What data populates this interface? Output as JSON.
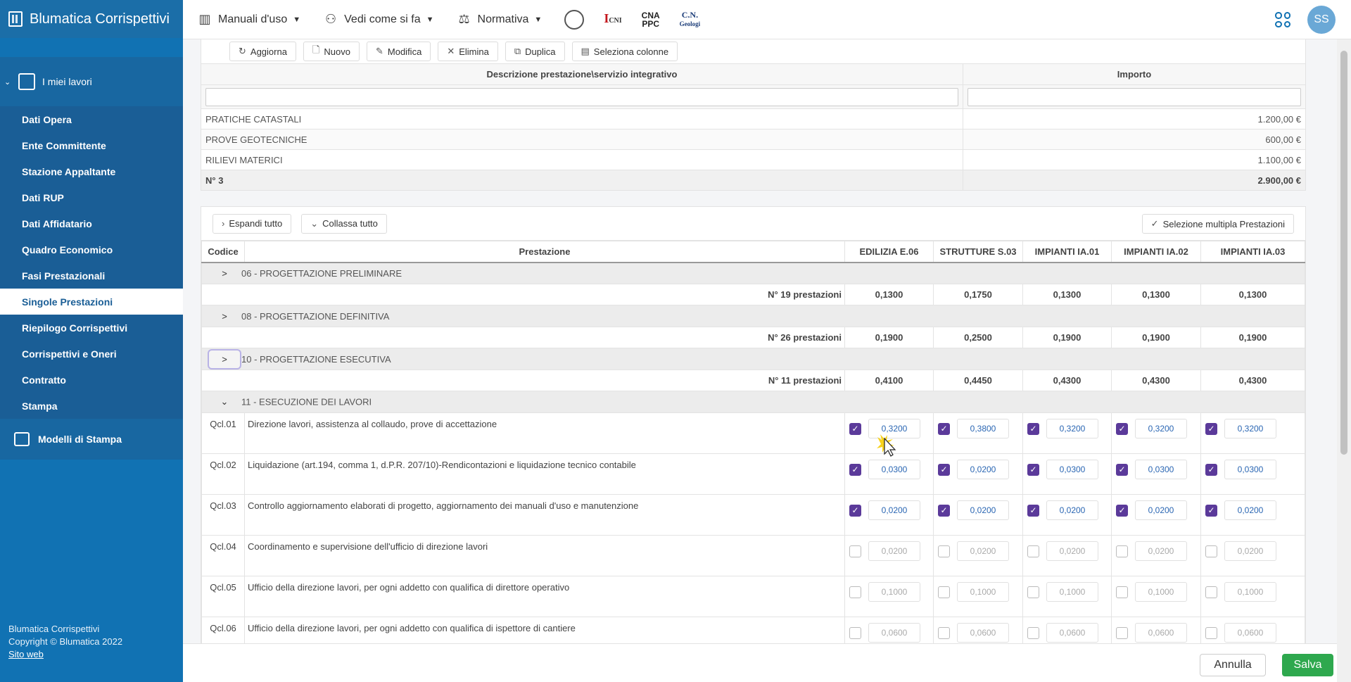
{
  "app": {
    "title": "Blumatica Corrispettivi"
  },
  "sidebar": {
    "section": "I miei lavori",
    "items": [
      {
        "label": "Dati Opera"
      },
      {
        "label": "Ente Committente"
      },
      {
        "label": "Stazione Appaltante"
      },
      {
        "label": "Dati RUP"
      },
      {
        "label": "Dati Affidatario"
      },
      {
        "label": "Quadro Economico"
      },
      {
        "label": "Fasi Prestazionali"
      },
      {
        "label": "Singole Prestazioni",
        "active": true
      },
      {
        "label": "Riepilogo Corrispettivi"
      },
      {
        "label": "Corrispettivi e Oneri"
      },
      {
        "label": "Contratto"
      },
      {
        "label": "Stampa"
      }
    ],
    "section2": "Modelli di Stampa",
    "footer": {
      "line1": "Blumatica Corrispettivi",
      "line2": "Copyright © Blumatica 2022",
      "link": "Sito web"
    }
  },
  "topbar": {
    "menus": [
      {
        "label": "Manuali d'uso",
        "icon": "books-icon"
      },
      {
        "label": "Vedi come si fa",
        "icon": "people-icon"
      },
      {
        "label": "Normativa",
        "icon": "scales-icon"
      }
    ],
    "logos": {
      "cni": "I",
      "cni_small": "CNI",
      "cna_top": "CNA",
      "cna_bottom": "PPC",
      "cng_top": "C.N.",
      "cng_bottom": "Geologi"
    },
    "avatar": "SS"
  },
  "toolbar": {
    "aggiorna": "Aggiorna",
    "nuovo": "Nuovo",
    "modifica": "Modifica",
    "elimina": "Elimina",
    "duplica": "Duplica",
    "seleziona_colonne": "Seleziona colonne"
  },
  "servizi": {
    "headers": {
      "descrizione": "Descrizione prestazione\\servizio integrativo",
      "importo": "Importo"
    },
    "rows": [
      {
        "descrizione": "PRATICHE CATASTALI",
        "importo": "1.200,00 €"
      },
      {
        "descrizione": "PROVE GEOTECNICHE",
        "importo": "600,00 €"
      },
      {
        "descrizione": "RILIEVI MATERICI",
        "importo": "1.100,00 €"
      }
    ],
    "footer": {
      "count": "N° 3",
      "total": "2.900,00 €"
    }
  },
  "prestazioni": {
    "buttons": {
      "espandi": "Espandi tutto",
      "collassa": "Collassa tutto",
      "selezione": "Selezione multipla Prestazioni"
    },
    "headers": {
      "codice": "Codice",
      "prestazione": "Prestazione",
      "cols": [
        "EDILIZIA E.06",
        "STRUTTURE S.03",
        "IMPIANTI IA.01",
        "IMPIANTI IA.02",
        "IMPIANTI IA.03"
      ]
    },
    "groups": [
      {
        "label": "06 - PROGETTAZIONE PRELIMINARE",
        "toggle": ">",
        "count": "N° 19 prestazioni",
        "values": [
          "0,1300",
          "0,1750",
          "0,1300",
          "0,1300",
          "0,1300"
        ]
      },
      {
        "label": "08 - PROGETTAZIONE DEFINITIVA",
        "toggle": ">",
        "count": "N° 26 prestazioni",
        "values": [
          "0,1900",
          "0,2500",
          "0,1900",
          "0,1900",
          "0,1900"
        ]
      },
      {
        "label": "10 - PROGETTAZIONE ESECUTIVA",
        "toggle": ">",
        "count": "N° 11 prestazioni",
        "values": [
          "0,4100",
          "0,4450",
          "0,4300",
          "0,4300",
          "0,4300"
        ]
      }
    ],
    "open_group": {
      "label": "11 - ESECUZIONE DEI LAVORI",
      "toggle": "⌄"
    },
    "rows": [
      {
        "code": "Qcl.01",
        "desc": "Direzione lavori, assistenza al collaudo, prove di accettazione",
        "checked": true,
        "values": [
          "0,3200",
          "0,3800",
          "0,3200",
          "0,3200",
          "0,3200"
        ]
      },
      {
        "code": "Qcl.02",
        "desc": "Liquidazione (art.194, comma 1, d.P.R. 207/10)-Rendicontazioni e liquidazione tecnico contabile",
        "checked": true,
        "values": [
          "0,0300",
          "0,0200",
          "0,0300",
          "0,0300",
          "0,0300"
        ]
      },
      {
        "code": "Qcl.03",
        "desc": "Controllo aggiornamento elaborati di progetto, aggiornamento dei manuali d'uso e manutenzione",
        "checked": true,
        "values": [
          "0,0200",
          "0,0200",
          "0,0200",
          "0,0200",
          "0,0200"
        ]
      },
      {
        "code": "Qcl.04",
        "desc": "Coordinamento e supervisione dell'ufficio di direzione lavori",
        "checked": false,
        "values": [
          "0,0200",
          "0,0200",
          "0,0200",
          "0,0200",
          "0,0200"
        ]
      },
      {
        "code": "Qcl.05",
        "desc": "Ufficio della direzione lavori, per ogni addetto con qualifica di direttore operativo",
        "checked": false,
        "values": [
          "0,1000",
          "0,1000",
          "0,1000",
          "0,1000",
          "0,1000"
        ]
      },
      {
        "code": "Qcl.06",
        "desc": "Ufficio della direzione lavori, per ogni addetto con qualifica di ispettore di cantiere",
        "checked": false,
        "values": [
          "0,0600",
          "0,0600",
          "0,0600",
          "0,0600",
          "0,0600"
        ]
      }
    ]
  },
  "actions": {
    "annulla": "Annulla",
    "salva": "Salva"
  },
  "colors": {
    "sidebar": "#1172b3",
    "checkbox": "#5b3a9a",
    "save": "#2ea84e"
  }
}
